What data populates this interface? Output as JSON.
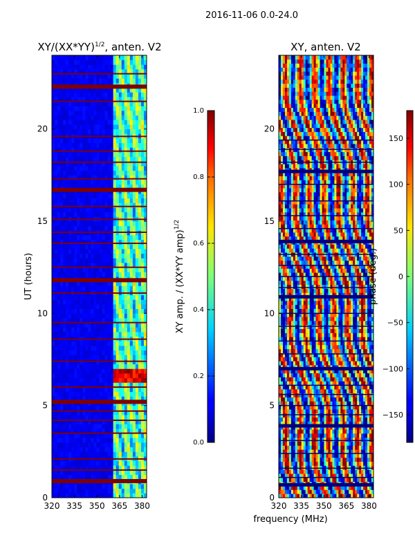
{
  "figure": {
    "suptitle": "2016-11-06 0.0-24.0",
    "shared_xlabel": "frequency (MHz)"
  },
  "chart_data": [
    {
      "type": "heatmap",
      "title_main": "XY/(XX*YY)",
      "title_sup": "1/2",
      "title_tail": ", anten. V2",
      "ylabel": "UT (hours)",
      "xlim": [
        320,
        383
      ],
      "ylim": [
        0,
        24
      ],
      "xticks": [
        320,
        335,
        350,
        365,
        380
      ],
      "yticks": [
        0,
        5,
        10,
        15,
        20
      ],
      "colorbar": {
        "label_main": "XY amp. / (XX*YY amp)",
        "label_sup": "1/2",
        "range": [
          0.0,
          1.0
        ],
        "ticks": [
          "0.0",
          "0.2",
          "0.4",
          "0.6",
          "0.8",
          "1.0"
        ],
        "colormap": "jet"
      },
      "description_values": {
        "low_band_level": 0.08,
        "high_band_start_mhz": 360,
        "high_band_level": 0.35,
        "hot_spot_hours": [
          6.2,
          7.0
        ],
        "flag_hours": [
          0.9,
          1.5,
          2.1,
          3.5,
          4.2,
          4.7,
          5.2,
          6.0,
          7.4,
          8.6,
          9.5,
          11.1,
          11.8,
          12.5,
          13.8,
          14.4,
          15.1,
          15.8,
          16.7,
          17.3,
          18.2,
          18.8,
          19.6,
          21.5,
          22.3,
          23.0
        ]
      }
    },
    {
      "type": "heatmap",
      "title": "XY, anten. V2",
      "xlim": [
        320,
        383
      ],
      "ylim": [
        0,
        24
      ],
      "xticks": [
        320,
        335,
        350,
        365,
        380
      ],
      "yticks": [
        0,
        5,
        10,
        15,
        20
      ],
      "colorbar": {
        "label": "phase (deg.)",
        "range": [
          -180,
          180
        ],
        "ticks": [
          "−150",
          "−100",
          "−50",
          "0",
          "50",
          "100",
          "150"
        ],
        "tick_values": [
          -150,
          -100,
          -50,
          0,
          50,
          100,
          150
        ],
        "colormap": "jet"
      },
      "description_values": {
        "flag_hours": [
          0.7,
          1.1,
          1.6,
          2.4,
          3.1,
          3.9,
          4.5,
          5.0,
          5.6,
          6.1,
          7.0,
          7.8,
          8.5,
          9.3,
          10.0,
          10.9,
          11.4,
          12.0,
          12.6,
          13.2,
          13.9,
          14.6,
          15.3,
          16.1,
          17.0,
          17.7,
          18.2,
          18.9,
          19.4
        ]
      }
    }
  ]
}
